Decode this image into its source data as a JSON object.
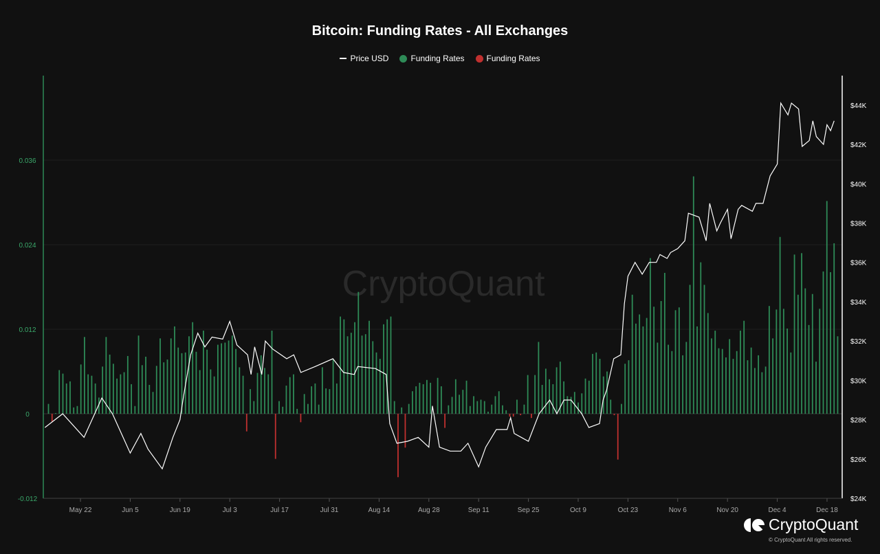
{
  "chart_data": {
    "type": "bar+line",
    "title": "Bitcoin: Funding Rates - All Exchanges",
    "legend": [
      {
        "label": "Price USD",
        "color": "#ffffff"
      },
      {
        "label": "Funding Rates",
        "color": "#2e8b57"
      },
      {
        "label": "Funding Rates",
        "color": "#c0302f"
      }
    ],
    "legend_placement": "top-center",
    "x_ticks": [
      {
        "label": "May 22",
        "day": 9
      },
      {
        "label": "Jun 5",
        "day": 23
      },
      {
        "label": "Jun 19",
        "day": 37
      },
      {
        "label": "Jul 3",
        "day": 51
      },
      {
        "label": "Jul 17",
        "day": 65
      },
      {
        "label": "Jul 31",
        "day": 79
      },
      {
        "label": "Aug 14",
        "day": 93
      },
      {
        "label": "Aug 28",
        "day": 107
      },
      {
        "label": "Sep 11",
        "day": 121
      },
      {
        "label": "Sep 25",
        "day": 135
      },
      {
        "label": "Oct 9",
        "day": 149
      },
      {
        "label": "Oct 23",
        "day": 163
      },
      {
        "label": "Nov 6",
        "day": 177
      },
      {
        "label": "Nov 20",
        "day": 191
      },
      {
        "label": "Dec 4",
        "day": 205
      },
      {
        "label": "Dec 18",
        "day": 219
      }
    ],
    "x_range_days": [
      0,
      223
    ],
    "left_axis": {
      "ticks": [
        "-0.012",
        "0",
        "0.012",
        "0.024",
        "0.036"
      ],
      "values": [
        -0.012,
        0,
        0.012,
        0.024,
        0.036
      ],
      "range": [
        -0.012,
        0.048
      ]
    },
    "right_axis": {
      "ticks": [
        "$24K",
        "$26K",
        "$28K",
        "$30K",
        "$32K",
        "$34K",
        "$36K",
        "$38K",
        "$40K",
        "$42K",
        "$44K"
      ],
      "values": [
        24,
        26,
        28,
        30,
        32,
        34,
        36,
        38,
        40,
        42,
        44
      ],
      "range": [
        24,
        45.5
      ],
      "unit": "thousand USD"
    },
    "grid": true,
    "funding_rates": [
      0.0014,
      -0.0011,
      0.0001,
      0.0062,
      0.0057,
      0.0043,
      0.0046,
      0.0009,
      0.0011,
      0.007,
      0.0109,
      0.0056,
      0.0054,
      0.0043,
      0.0023,
      0.0067,
      0.0109,
      0.0084,
      0.0071,
      0.005,
      0.0056,
      0.0059,
      0.0082,
      0.0042,
      0.0011,
      0.0111,
      0.0069,
      0.0081,
      0.0041,
      0.0031,
      0.0068,
      0.0107,
      0.0073,
      0.0077,
      0.0107,
      0.0124,
      0.0094,
      0.0086,
      0.0087,
      0.011,
      0.013,
      0.0088,
      0.0062,
      0.0118,
      0.0091,
      0.0063,
      0.0053,
      0.0098,
      0.01,
      0.0101,
      0.0104,
      0.0111,
      0.0092,
      0.0066,
      0.0054,
      -0.0025,
      0.0035,
      0.0018,
      0.0058,
      0.0083,
      0.0065,
      0.0056,
      0.0118,
      -0.0064,
      0.0018,
      0.001,
      0.004,
      0.0052,
      0.0056,
      0.0007,
      -0.0012,
      0.0028,
      0.0014,
      0.0039,
      0.0043,
      0.0013,
      0.0066,
      0.0036,
      0.0035,
      0.0077,
      0.0043,
      0.0138,
      0.0134,
      0.011,
      0.0115,
      0.013,
      0.0173,
      0.0111,
      0.0113,
      0.0132,
      0.0103,
      0.0087,
      0.0078,
      0.0127,
      0.0134,
      0.0138,
      0.0018,
      -0.009,
      0.0009,
      -0.0048,
      0.0014,
      0.0032,
      0.0039,
      0.0044,
      0.0042,
      0.0048,
      0.0044,
      0.0,
      0.0051,
      0.0039,
      -0.002,
      0.0012,
      0.0024,
      0.0049,
      0.0027,
      0.0034,
      0.0047,
      0.0011,
      0.0025,
      0.0018,
      0.002,
      0.0018,
      0.0003,
      0.0013,
      0.0025,
      0.0032,
      0.0012,
      0.0005,
      -0.0004,
      -0.0004,
      0.002,
      -0.0002,
      0.0013,
      0.0055,
      -0.0006,
      0.0055,
      0.0102,
      0.0041,
      0.0064,
      0.0049,
      0.0042,
      0.0066,
      0.0074,
      0.0046,
      0.0025,
      0.0024,
      0.0031,
      0.0016,
      0.0029,
      0.005,
      0.0047,
      0.0085,
      0.0087,
      0.0078,
      0.0053,
      0.006,
      0.002,
      -0.0002,
      -0.0065,
      0.0014,
      0.0071,
      0.0076,
      0.0169,
      0.0128,
      0.0141,
      0.0124,
      0.0136,
      0.0221,
      0.0152,
      0.0101,
      0.016,
      0.02,
      0.0098,
      0.0089,
      0.0147,
      0.0151,
      0.0083,
      0.0102,
      0.0183,
      0.0337,
      0.0124,
      0.0215,
      0.0183,
      0.0143,
      0.0107,
      0.0118,
      0.0093,
      0.0092,
      0.008,
      0.0106,
      0.0078,
      0.0089,
      0.0118,
      0.0132,
      0.0076,
      0.0094,
      0.0065,
      0.0083,
      0.0059,
      0.0067,
      0.0153,
      0.0107,
      0.0148,
      0.0251,
      0.0149,
      0.0121,
      0.0087,
      0.0226,
      0.0169,
      0.0228,
      0.0178,
      0.0126,
      0.017,
      0.0074,
      0.0149,
      0.0202,
      0.0302,
      0.0201,
      0.0242,
      0.011
    ],
    "price_usd_k": [
      [
        -1,
        27.6
      ],
      [
        4,
        28.3
      ],
      [
        10,
        27.1
      ],
      [
        15,
        29.1
      ],
      [
        18,
        28.3
      ],
      [
        23,
        26.3
      ],
      [
        26,
        27.3
      ],
      [
        28,
        26.5
      ],
      [
        32,
        25.5
      ],
      [
        35,
        27.1
      ],
      [
        37,
        28.0
      ],
      [
        38,
        29.2
      ],
      [
        40,
        31.3
      ],
      [
        42,
        32.4
      ],
      [
        44,
        31.7
      ],
      [
        46,
        32.2
      ],
      [
        49,
        32.1
      ],
      [
        51,
        33.0
      ],
      [
        53,
        31.8
      ],
      [
        56,
        31.3
      ],
      [
        57,
        30.3
      ],
      [
        58,
        31.7
      ],
      [
        60,
        30.3
      ],
      [
        61,
        32.0
      ],
      [
        63,
        31.6
      ],
      [
        67,
        31.1
      ],
      [
        69,
        31.3
      ],
      [
        71,
        30.4
      ],
      [
        75,
        30.7
      ],
      [
        80,
        31.1
      ],
      [
        83,
        30.4
      ],
      [
        86,
        30.3
      ],
      [
        87,
        30.7
      ],
      [
        92,
        30.6
      ],
      [
        95,
        30.3
      ],
      [
        96,
        27.8
      ],
      [
        98,
        26.8
      ],
      [
        101,
        26.9
      ],
      [
        104,
        27.1
      ],
      [
        107,
        26.6
      ],
      [
        108,
        28.7
      ],
      [
        110,
        26.6
      ],
      [
        113,
        26.4
      ],
      [
        116,
        26.4
      ],
      [
        118,
        26.8
      ],
      [
        121,
        25.6
      ],
      [
        123,
        26.6
      ],
      [
        126,
        27.5
      ],
      [
        129,
        27.5
      ],
      [
        130,
        28.1
      ],
      [
        131,
        27.3
      ],
      [
        133,
        27.1
      ],
      [
        135,
        26.9
      ],
      [
        138,
        28.3
      ],
      [
        141,
        29.0
      ],
      [
        143,
        28.3
      ],
      [
        145,
        29.0
      ],
      [
        147,
        29.0
      ],
      [
        150,
        28.3
      ],
      [
        152,
        27.6
      ],
      [
        155,
        27.8
      ],
      [
        156,
        29.0
      ],
      [
        157,
        29.5
      ],
      [
        159,
        31.1
      ],
      [
        161,
        31.3
      ],
      [
        162,
        33.9
      ],
      [
        163,
        35.3
      ],
      [
        165,
        36.0
      ],
      [
        167,
        35.4
      ],
      [
        169,
        36.0
      ],
      [
        171,
        36.0
      ],
      [
        172,
        36.4
      ],
      [
        174,
        36.2
      ],
      [
        175,
        36.5
      ],
      [
        177,
        36.7
      ],
      [
        179,
        37.1
      ],
      [
        180,
        38.5
      ],
      [
        183,
        38.3
      ],
      [
        185,
        37.1
      ],
      [
        186,
        39.0
      ],
      [
        188,
        37.6
      ],
      [
        189,
        38.0
      ],
      [
        191,
        38.7
      ],
      [
        192,
        37.2
      ],
      [
        194,
        38.7
      ],
      [
        195,
        38.9
      ],
      [
        198,
        38.6
      ],
      [
        199,
        39.0
      ],
      [
        201,
        39.0
      ],
      [
        203,
        40.4
      ],
      [
        205,
        41.0
      ],
      [
        206,
        44.1
      ],
      [
        208,
        43.5
      ],
      [
        209,
        44.1
      ],
      [
        211,
        43.8
      ],
      [
        212,
        41.9
      ],
      [
        214,
        42.2
      ],
      [
        215,
        43.2
      ],
      [
        216,
        42.4
      ],
      [
        218,
        42.0
      ],
      [
        219,
        43.0
      ],
      [
        220,
        42.7
      ],
      [
        221,
        43.2
      ]
    ]
  },
  "watermark": "CryptoQuant",
  "footer": {
    "brand": "CryptoQuant",
    "copyright": "© CryptoQuant All rights reserved."
  }
}
